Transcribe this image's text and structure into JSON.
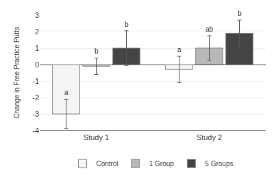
{
  "chart_data": {
    "type": "bar",
    "categories": [
      "Study 1",
      "Study 2"
    ],
    "series": [
      {
        "name": "Control",
        "color": "#f5f5f5",
        "values": [
          -3.0,
          -0.3
        ],
        "errors": [
          0.9,
          0.8
        ],
        "labels": [
          "a",
          "a"
        ]
      },
      {
        "name": "1 Group",
        "color": "#b8b8b8",
        "values": [
          -0.1,
          1.0
        ],
        "errors": [
          0.5,
          0.75
        ],
        "labels": [
          "b",
          "ab"
        ]
      },
      {
        "name": "5 Groups",
        "color": "#444444",
        "values": [
          1.0,
          1.9
        ],
        "errors": [
          1.05,
          0.8
        ],
        "labels": [
          "b",
          "b"
        ]
      }
    ],
    "ylabel": "Change in Free Practice Putts",
    "ylim": [
      -4,
      3
    ],
    "yticks": [
      -4,
      -3,
      -2,
      -1,
      0,
      1,
      2,
      3
    ],
    "grid": true,
    "legend": "bottom"
  }
}
